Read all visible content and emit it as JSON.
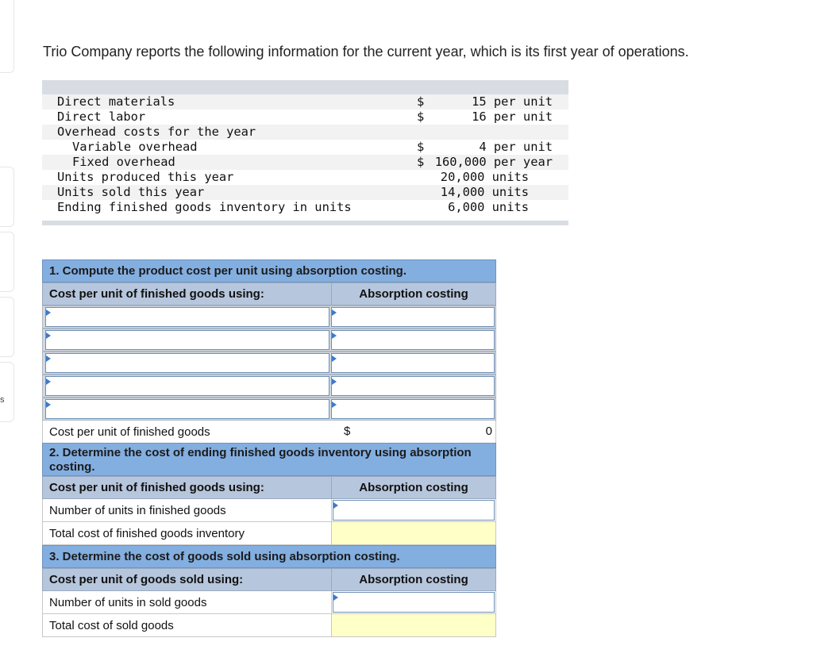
{
  "intro": "Trio Company reports the following information for the current year, which is its first year of operations.",
  "edge_glyph": "s",
  "info": {
    "rows": [
      {
        "label": "Direct materials",
        "indent": false,
        "currency": "$",
        "value": "15 per unit",
        "units": false
      },
      {
        "label": "Direct labor",
        "indent": false,
        "currency": "$",
        "value": "16 per unit",
        "units": false
      },
      {
        "label": "Overhead costs for the year",
        "indent": false,
        "currency": "",
        "value": "",
        "units": false
      },
      {
        "label": "Variable overhead",
        "indent": true,
        "currency": "$",
        "value": "4 per unit",
        "units": false
      },
      {
        "label": "Fixed overhead",
        "indent": true,
        "currency": "$",
        "value": "160,000 per year",
        "units": false
      },
      {
        "label": "Units produced this year",
        "indent": false,
        "currency": "",
        "value": "20,000 units",
        "units": true
      },
      {
        "label": "Units sold this year",
        "indent": false,
        "currency": "",
        "value": "14,000 units",
        "units": true
      },
      {
        "label": "Ending finished goods inventory in units",
        "indent": false,
        "currency": "",
        "value": "6,000 units",
        "units": true
      }
    ]
  },
  "part1": {
    "title": "1. Compute the product cost per unit using absorption costing.",
    "col1": "Cost per unit of finished goods using:",
    "col2": "Absorption costing",
    "total_label": "Cost per unit of finished goods",
    "total_currency": "$",
    "total_value": "0"
  },
  "part2": {
    "title": "2. Determine the cost of ending finished goods inventory using absorption costing.",
    "col1": "Cost per unit of finished goods using:",
    "col2": "Absorption costing",
    "row1": "Number of units in finished goods",
    "row2": "Total cost of finished goods inventory"
  },
  "part3": {
    "title": "3. Determine the cost of goods sold using absorption costing.",
    "col1": "Cost per unit of goods sold using:",
    "col2": "Absorption costing",
    "row1": "Number of units in sold goods",
    "row2": "Total cost of sold goods"
  },
  "colors": {
    "section_header": "#83aee0",
    "column_header": "#b6c6dc",
    "computed_cell": "#ffffc8"
  }
}
